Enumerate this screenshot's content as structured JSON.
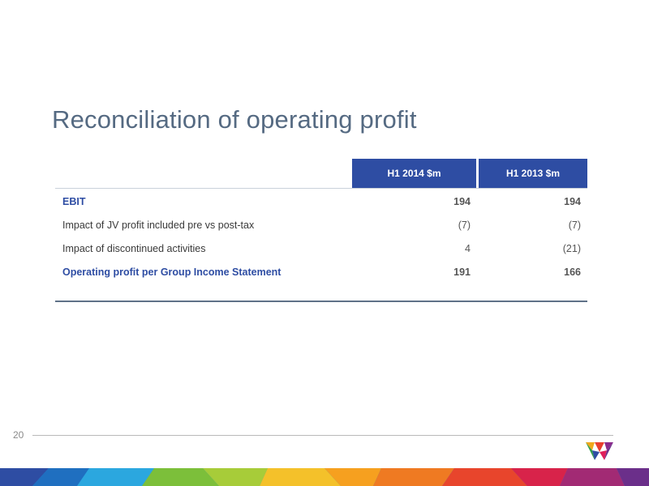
{
  "slide": {
    "title": "Reconciliation of operating profit",
    "page_number": "20"
  },
  "table": {
    "headers": [
      "H1 2014 $m",
      "H1 2013 $m"
    ],
    "rows": [
      {
        "label": "EBIT",
        "h1_2014": "194",
        "h1_2013": "194",
        "emphasis": true
      },
      {
        "label": "Impact of JV profit included pre vs post-tax",
        "h1_2014": "(7)",
        "h1_2013": "(7)",
        "emphasis": false
      },
      {
        "label": "Impact of discontinued activities",
        "h1_2014": "4",
        "h1_2013": "(21)",
        "emphasis": false
      },
      {
        "label": "Operating profit per Group Income Statement",
        "h1_2014": "191",
        "h1_2013": "166",
        "emphasis": true
      }
    ]
  },
  "colors": {
    "header_blue": "#2e4da3",
    "title_gray_blue": "#556a82"
  },
  "icons": [
    "company-logo-icon",
    "decorative-color-stripe"
  ]
}
